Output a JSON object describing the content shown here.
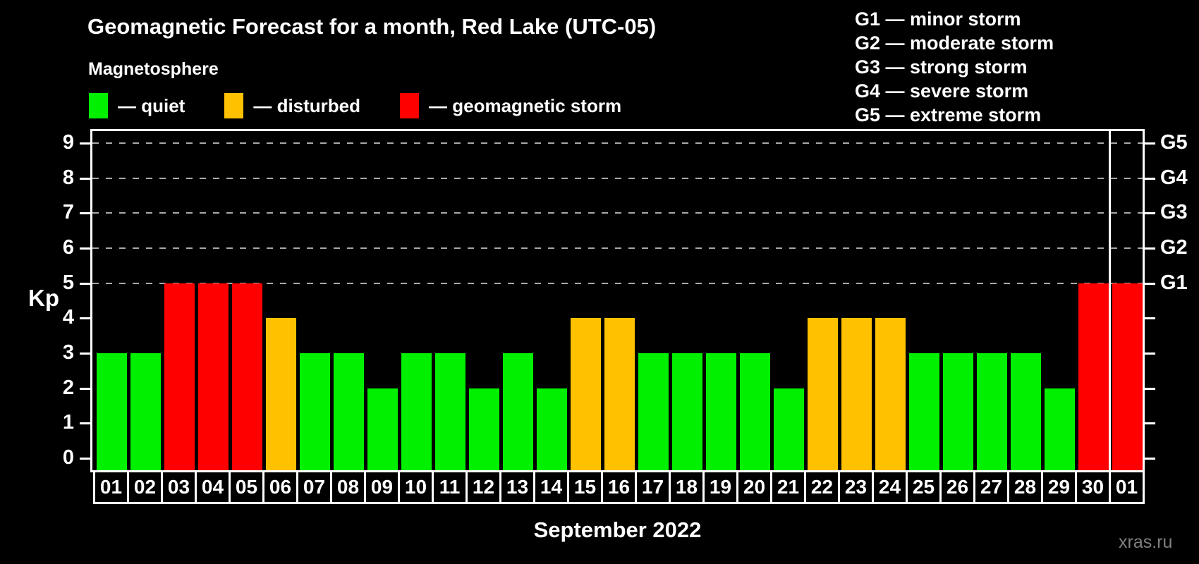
{
  "title": "Geomagnetic Forecast for a month, Red Lake (UTC-05)",
  "legend_title": "Magnetosphere",
  "legend": {
    "items": [
      {
        "status": "quiet",
        "label": "— quiet",
        "color": "#00F000"
      },
      {
        "status": "disturbed",
        "label": "— disturbed",
        "color": "#FFC100"
      },
      {
        "status": "storm",
        "label": "— geomagnetic storm",
        "color": "#FF0000"
      }
    ]
  },
  "g_legend": [
    "G1 — minor storm",
    "G2 — moderate storm",
    "G3 — strong storm",
    "G4 — severe storm",
    "G5 — extreme storm"
  ],
  "y_axis": {
    "title": "Kp",
    "ticks": [
      0,
      1,
      2,
      3,
      4,
      5,
      6,
      7,
      8,
      9
    ]
  },
  "right_axis": {
    "labels": [
      {
        "kp": 5,
        "g": "G1"
      },
      {
        "kp": 6,
        "g": "G2"
      },
      {
        "kp": 7,
        "g": "G3"
      },
      {
        "kp": 8,
        "g": "G4"
      },
      {
        "kp": 9,
        "g": "G5"
      }
    ]
  },
  "x_axis": {
    "title": "September 2022"
  },
  "watermark": "xras.ru",
  "chart_data": {
    "type": "bar",
    "title": "Geomagnetic Forecast for a month, Red Lake (UTC-05)",
    "xlabel": "September 2022",
    "ylabel": "Kp",
    "ylim": [
      0,
      9
    ],
    "legend_position": "top",
    "grid": "dashed horizontal at Kp 5-9 only",
    "gridlines_at": [
      5,
      6,
      7,
      8,
      9
    ],
    "categories": [
      "01",
      "02",
      "03",
      "04",
      "05",
      "06",
      "07",
      "08",
      "09",
      "10",
      "11",
      "12",
      "13",
      "14",
      "15",
      "16",
      "17",
      "18",
      "19",
      "20",
      "21",
      "22",
      "23",
      "24",
      "25",
      "26",
      "27",
      "28",
      "29",
      "30",
      "01"
    ],
    "values": [
      3,
      3,
      5,
      5,
      5,
      4,
      3,
      3,
      2,
      3,
      3,
      2,
      3,
      2,
      4,
      4,
      3,
      3,
      3,
      3,
      2,
      4,
      4,
      4,
      3,
      3,
      3,
      3,
      2,
      5,
      5
    ],
    "statuses": [
      "quiet",
      "quiet",
      "storm",
      "storm",
      "storm",
      "disturbed",
      "quiet",
      "quiet",
      "quiet",
      "quiet",
      "quiet",
      "quiet",
      "quiet",
      "quiet",
      "disturbed",
      "disturbed",
      "quiet",
      "quiet",
      "quiet",
      "quiet",
      "quiet",
      "disturbed",
      "disturbed",
      "disturbed",
      "quiet",
      "quiet",
      "quiet",
      "quiet",
      "quiet",
      "storm",
      "storm"
    ],
    "month_boundary_after_index": 29,
    "colors": {
      "quiet": "#00F000",
      "disturbed": "#FFC100",
      "storm": "#FF0000"
    }
  }
}
